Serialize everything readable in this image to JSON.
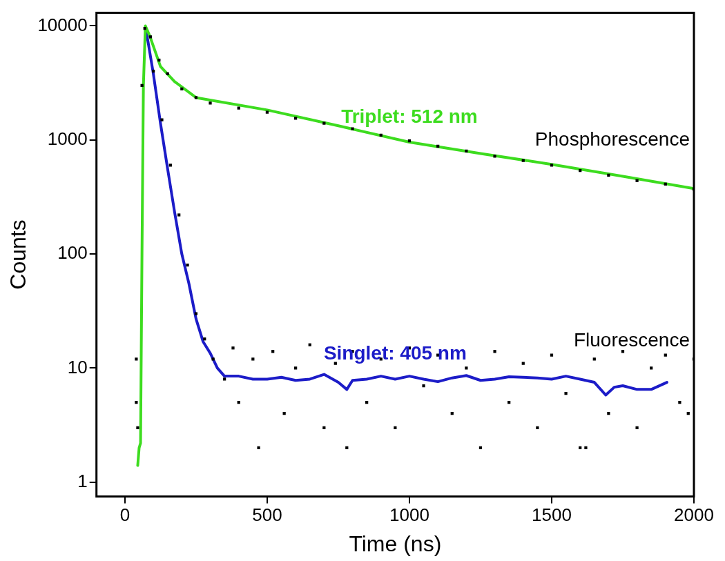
{
  "chart_data": {
    "type": "line",
    "xlabel": "Time (ns)",
    "ylabel": "Counts",
    "log": "y",
    "grid": false,
    "legend": false,
    "xlim": [
      -100,
      2000
    ],
    "xticks": [
      0,
      500,
      1000,
      1500,
      2000
    ],
    "ylim": [
      0.75,
      13000
    ],
    "yticks": [
      1,
      10,
      100,
      1000,
      10000
    ],
    "series": [
      {
        "type": "scatter",
        "marker": "square",
        "color": "#000000",
        "x": [
          40,
          40,
          45,
          60,
          70,
          90,
          120,
          150,
          200,
          250,
          300,
          400,
          500,
          600,
          700,
          800,
          900,
          1000,
          1100,
          1200,
          1300,
          1400,
          1500,
          1600,
          1700,
          1800,
          1900,
          2000,
          100,
          130,
          160,
          190,
          220,
          250,
          280,
          310,
          350,
          380,
          400,
          450,
          470,
          520,
          560,
          600,
          650,
          700,
          740,
          780,
          800,
          850,
          900,
          950,
          1000,
          1050,
          1100,
          1150,
          1200,
          1250,
          1300,
          1350,
          1400,
          1450,
          1500,
          1550,
          1600,
          1620,
          1650,
          1700,
          1750,
          1800,
          1850,
          1900,
          1950,
          1980,
          2000
        ],
        "values": [
          12,
          5,
          3,
          3000,
          9500,
          8000,
          5000,
          3800,
          2800,
          2350,
          2100,
          1900,
          1750,
          1550,
          1400,
          1250,
          1100,
          980,
          880,
          800,
          720,
          660,
          600,
          540,
          490,
          440,
          410,
          370,
          4000,
          1500,
          600,
          220,
          80,
          30,
          18,
          12,
          8,
          15,
          5,
          12,
          2,
          14,
          4,
          10,
          16,
          3,
          11,
          2,
          14,
          5,
          12,
          3,
          15,
          7,
          13,
          4,
          10,
          2,
          14,
          5,
          11,
          3,
          13,
          6,
          2,
          2,
          12,
          4,
          14,
          3,
          10,
          13,
          5,
          4,
          12
        ]
      },
      {
        "marker": "none",
        "name": "Triplet: 512 nm",
        "color": "#3ddc1f",
        "x": [
          45,
          50,
          55,
          60,
          65,
          72,
          87,
          125,
          175,
          250,
          500,
          750,
          1000,
          1250,
          1500,
          1750,
          2000
        ],
        "values": [
          1.4,
          2,
          2.2,
          100,
          3000,
          10000,
          8200,
          4400,
          3240,
          2350,
          1830,
          1330,
          955,
          760,
          610,
          480,
          375
        ]
      },
      {
        "marker": "none",
        "name": "Singlet: 405 nm",
        "color": "#1c1cc8",
        "x": [
          75,
          100,
          125,
          150,
          175,
          200,
          225,
          250,
          275,
          300,
          325,
          350,
          400,
          450,
          500,
          550,
          600,
          650,
          700,
          750,
          780,
          800,
          850,
          900,
          950,
          1000,
          1050,
          1100,
          1150,
          1200,
          1250,
          1300,
          1350,
          1400,
          1450,
          1500,
          1550,
          1600,
          1650,
          1690,
          1720,
          1750,
          1800,
          1850,
          1905
        ],
        "values": [
          9000,
          3800,
          1400,
          560,
          230,
          100,
          55,
          27,
          17,
          13.5,
          10,
          8.5,
          8.5,
          8,
          8,
          8.3,
          7.8,
          8,
          8.8,
          7.5,
          6.5,
          7.8,
          8,
          8.5,
          8,
          8.5,
          8,
          7.6,
          8.2,
          8.6,
          7.8,
          8,
          8.4,
          8.3,
          8.2,
          8,
          8.5,
          8,
          7.5,
          5.8,
          6.8,
          7,
          6.5,
          6.5,
          7.5
        ]
      }
    ],
    "annotations": [
      "Phosphorescence",
      "Fluorescence"
    ]
  }
}
